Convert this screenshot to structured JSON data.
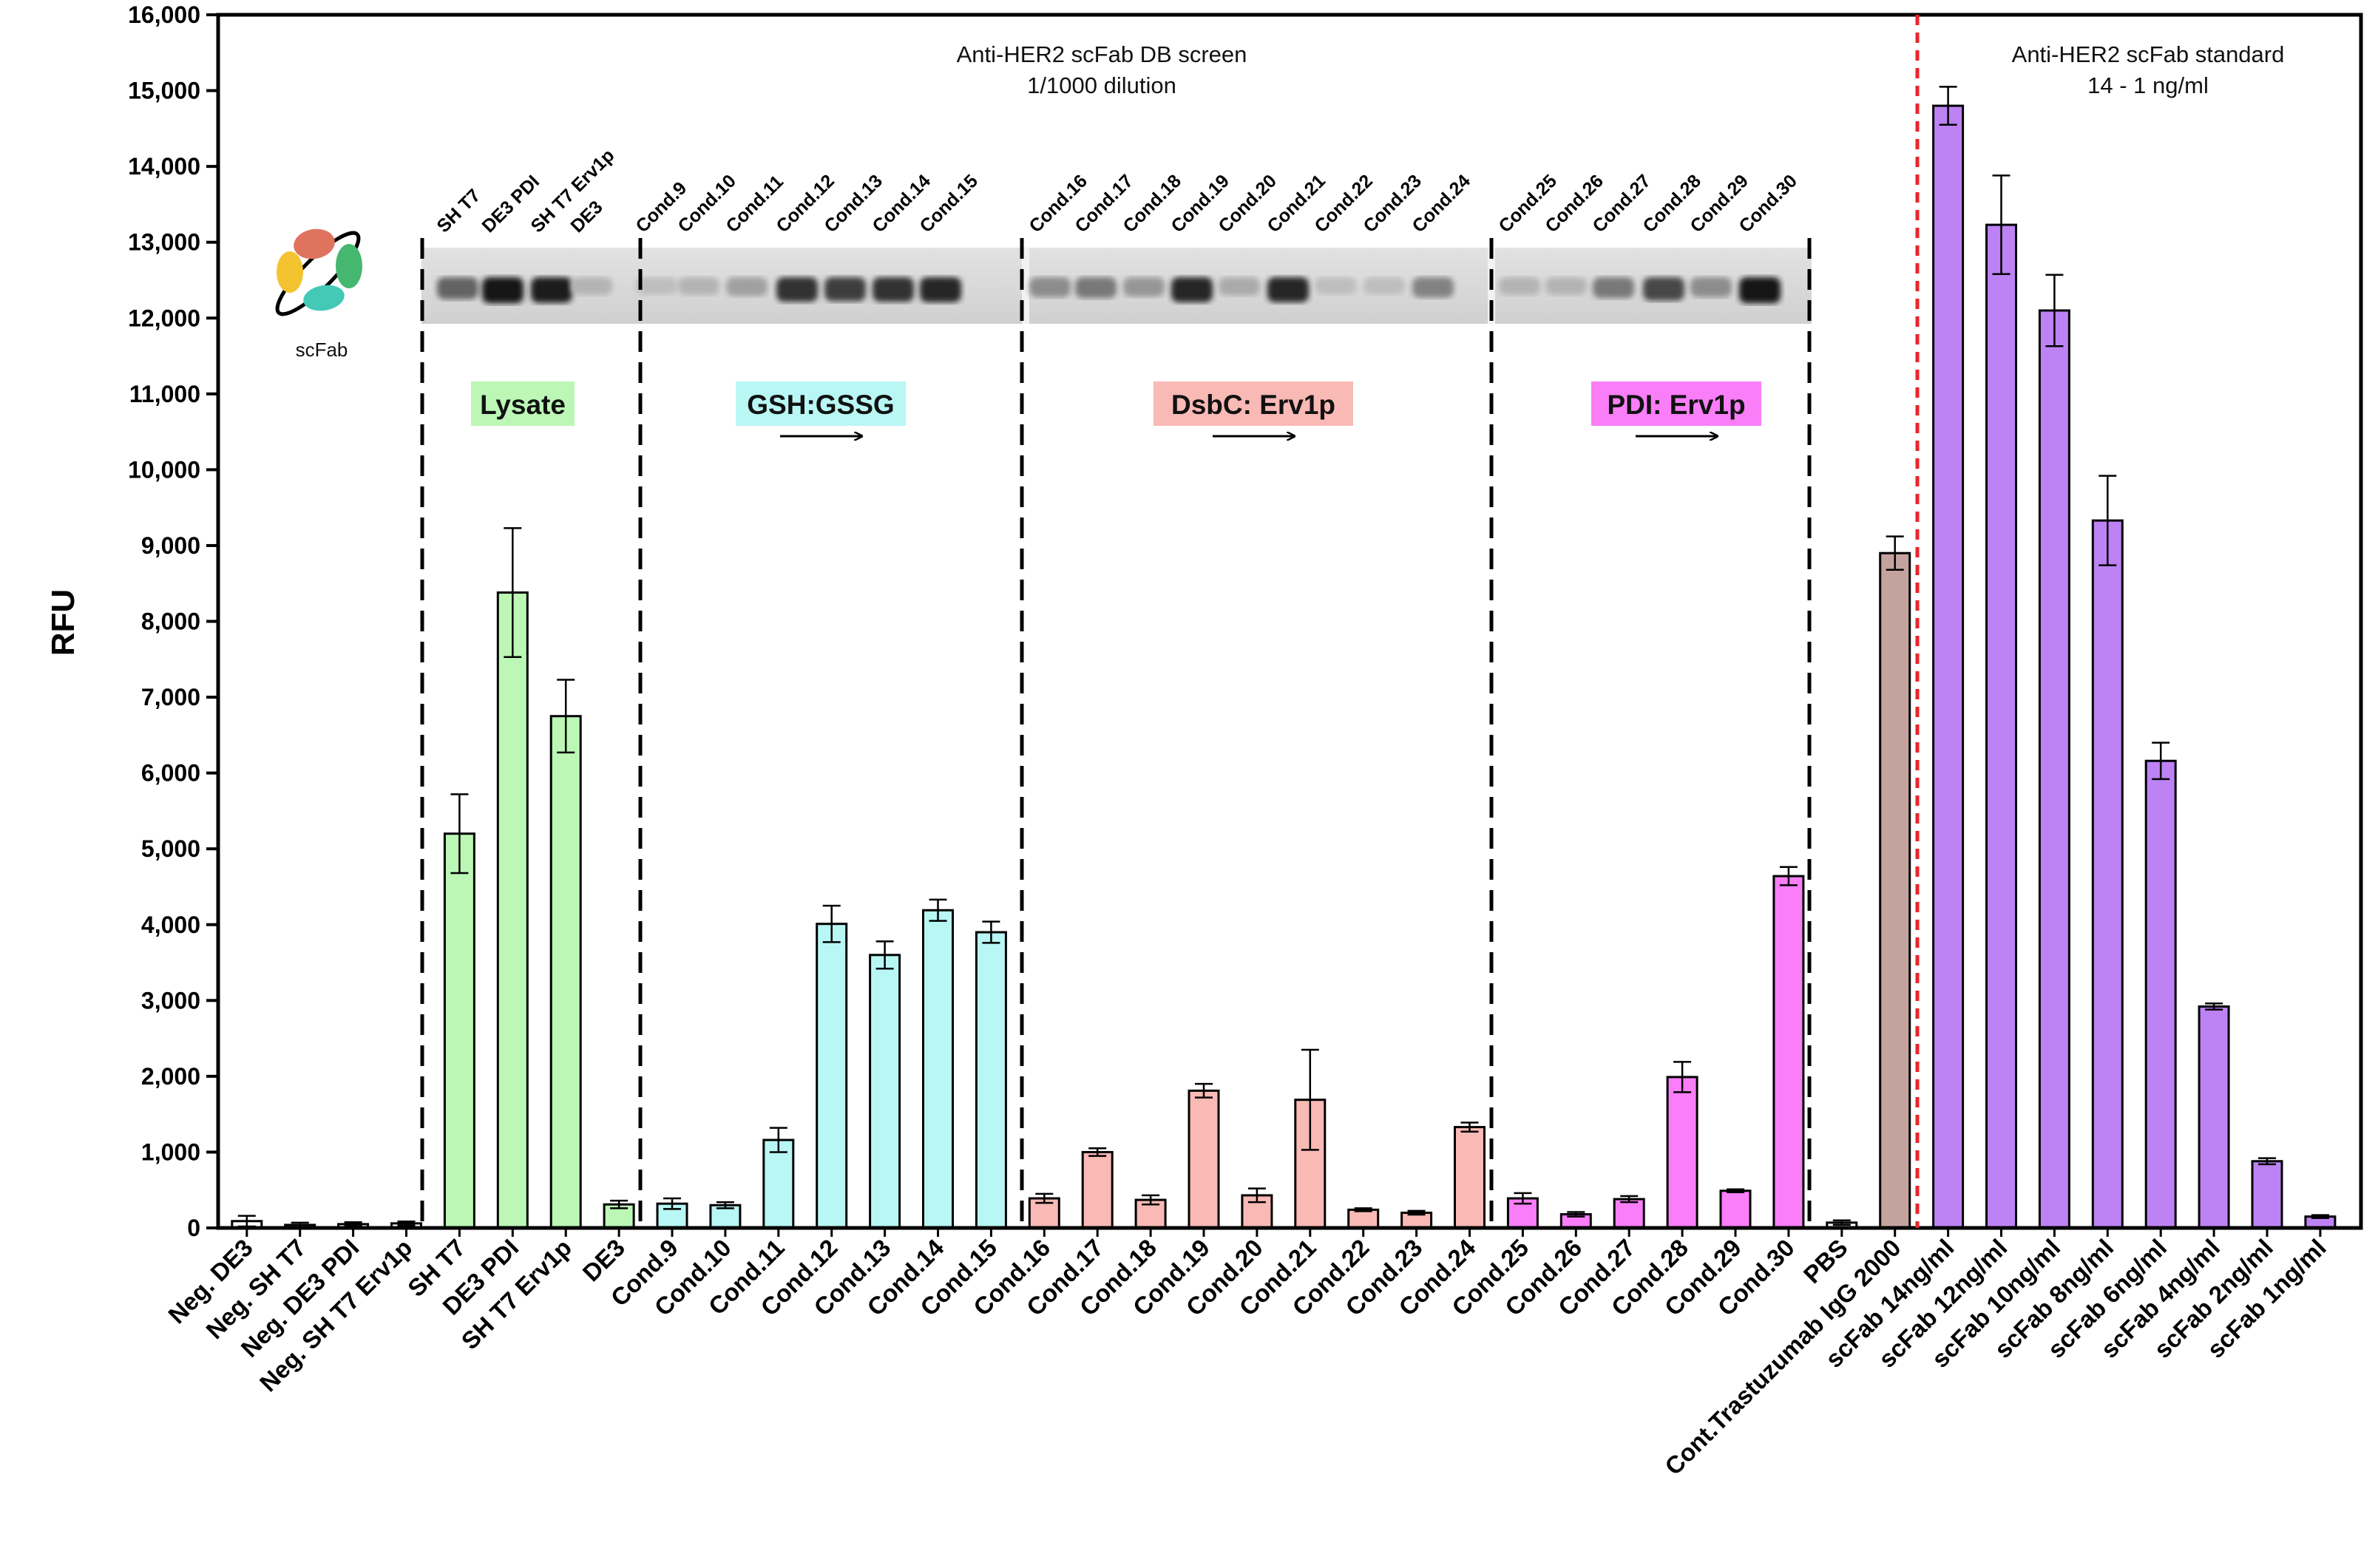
{
  "chart_data": {
    "type": "bar",
    "ylabel": "RFU",
    "ylim": [
      0,
      16000
    ],
    "yticks": [
      0,
      1000,
      2000,
      3000,
      4000,
      5000,
      6000,
      7000,
      8000,
      9000,
      10000,
      11000,
      12000,
      13000,
      14000,
      15000,
      16000
    ],
    "ytick_labels": [
      "0",
      "1,000",
      "2,000",
      "3,000",
      "4,000",
      "5,000",
      "6,000",
      "7,000",
      "8,000",
      "9,000",
      "10,000",
      "11,000",
      "12,000",
      "13,000",
      "14,000",
      "15,000",
      "16,000"
    ],
    "categories": [
      "Neg. DE3",
      "Neg. SH T7",
      "Neg. DE3 PDI",
      "Neg. SH T7 Erv1p",
      "SH T7",
      "DE3 PDI",
      "SH T7 Erv1p",
      "DE3",
      "Cond.9",
      "Cond.10",
      "Cond.11",
      "Cond.12",
      "Cond.13",
      "Cond.14",
      "Cond.15",
      "Cond.16",
      "Cond.17",
      "Cond.18",
      "Cond.19",
      "Cond.20",
      "Cond.21",
      "Cond.22",
      "Cond.23",
      "Cond.24",
      "Cond.25",
      "Cond.26",
      "Cond.27",
      "Cond.28",
      "Cond.29",
      "Cond.30",
      "PBS",
      "Cont.Trastuzumab IgG 2000",
      "scFab 14ng/ml",
      "scFab 12ng/ml",
      "scFab 10ng/ml",
      "scFab 8ng/ml",
      "scFab 6ng/ml",
      "scFab 4ng/ml",
      "scFab 2ng/ml",
      "scFab 1ng/ml"
    ],
    "values": [
      90,
      40,
      50,
      60,
      5200,
      8380,
      6750,
      310,
      320,
      300,
      1160,
      4010,
      3600,
      4190,
      3900,
      390,
      1000,
      370,
      1810,
      430,
      1690,
      240,
      200,
      1330,
      390,
      180,
      380,
      1990,
      490,
      4640,
      70,
      8900,
      14800,
      13230,
      12100,
      9330,
      6160,
      2920,
      880,
      150
    ],
    "errors": [
      70,
      30,
      25,
      25,
      520,
      850,
      480,
      50,
      70,
      40,
      160,
      240,
      180,
      140,
      140,
      60,
      50,
      60,
      90,
      90,
      660,
      20,
      25,
      60,
      70,
      30,
      40,
      200,
      20,
      120,
      30,
      220,
      250,
      650,
      470,
      590,
      240,
      40,
      40,
      20
    ],
    "colors": [
      "#ffffff",
      "#ffffff",
      "#ffffff",
      "#ffffff",
      "#bcf7b6",
      "#bcf7b6",
      "#bcf7b6",
      "#bcf7b6",
      "#b8f7f4",
      "#b8f7f4",
      "#b8f7f4",
      "#b8f7f4",
      "#b8f7f4",
      "#b8f7f4",
      "#b8f7f4",
      "#f9b9b5",
      "#f9b9b5",
      "#f9b9b5",
      "#f9b9b5",
      "#f9b9b5",
      "#f9b9b5",
      "#f9b9b5",
      "#f9b9b5",
      "#f9b9b5",
      "#f97ef8",
      "#f97ef8",
      "#f97ef8",
      "#f97ef8",
      "#f97ef8",
      "#f97ef8",
      "#ffffff",
      "#c4a39e",
      "#bd82f4",
      "#bd82f4",
      "#bd82f4",
      "#bd82f4",
      "#bd82f4",
      "#bd82f4",
      "#bd82f4",
      "#bd82f4"
    ],
    "annotations": {
      "screen_title": "Anti-HER2 scFab DB screen",
      "screen_dilution": "1/1000 dilution",
      "standard_title": "Anti-HER2 scFab standard",
      "standard_range": "14 - 1 ng/ml",
      "logo_label": "scFab"
    },
    "groups": [
      {
        "label": "Lysate",
        "color": "#bcf7b6",
        "arrow": false
      },
      {
        "label": "GSH:GSSG",
        "color": "#b8f7f4",
        "arrow": true
      },
      {
        "label": "DsbC: Erv1p",
        "color": "#f9b9b5",
        "arrow": true
      },
      {
        "label": "PDI: Erv1p",
        "color": "#f97ef8",
        "arrow": true
      }
    ],
    "blot_lanes": [
      "SH T7",
      "DE3 PDI",
      "SH T7 Erv1p",
      "DE3",
      "Cond.9",
      "Cond.10",
      "Cond.11",
      "Cond.12",
      "Cond.13",
      "Cond.14",
      "Cond.15",
      "Cond.16",
      "Cond.17",
      "Cond.18",
      "Cond.19",
      "Cond.20",
      "Cond.21",
      "Cond.22",
      "Cond.23",
      "Cond.24",
      "Cond.25",
      "Cond.26",
      "Cond.27",
      "Cond.28",
      "Cond.29",
      "Cond.30"
    ],
    "blot_intensity": [
      0.55,
      0.95,
      0.9,
      0.15,
      0.1,
      0.15,
      0.25,
      0.8,
      0.75,
      0.8,
      0.85,
      0.35,
      0.45,
      0.3,
      0.85,
      0.2,
      0.85,
      0.1,
      0.1,
      0.4,
      0.15,
      0.15,
      0.45,
      0.7,
      0.35,
      0.95
    ]
  }
}
